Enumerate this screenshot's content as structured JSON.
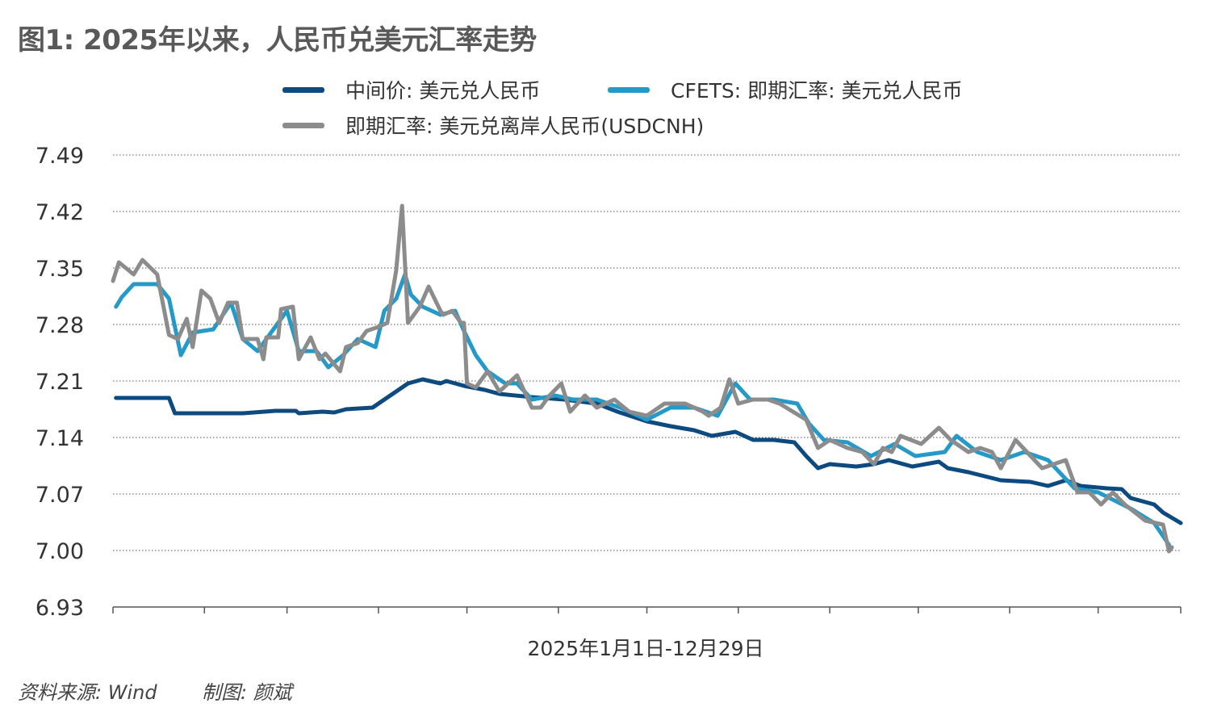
{
  "title": "图1: 2025年以来，人民币兑美元汇率走势",
  "footer": {
    "source": "资料来源: Wind",
    "author": "制图: 颜斌"
  },
  "chart_data": {
    "type": "line",
    "title": "图1: 2025年以来，人民币兑美元汇率走势",
    "xlabel": "2025年1月1日-12月29日",
    "ylabel": "",
    "x_unit": "day of year 2025 (0 = Jan 1)",
    "xlim": [
      0,
      362
    ],
    "ylim": [
      6.93,
      7.49
    ],
    "yticks": [
      "7.49",
      "7.42",
      "7.35",
      "7.28",
      "7.21",
      "7.14",
      "7.07",
      "7.00",
      "6.93"
    ],
    "ytick_values": [
      7.49,
      7.42,
      7.35,
      7.28,
      7.21,
      7.14,
      7.07,
      7.0,
      6.93
    ],
    "xticks_days": [
      0,
      31,
      59,
      90,
      120,
      151,
      181,
      212,
      243,
      273,
      304,
      334,
      362
    ],
    "grid": "horizontal dotted",
    "legend_placement": "top",
    "series": [
      {
        "name": "中间价: 美元兑人民币",
        "color": "#0d4a80",
        "points": [
          [
            1,
            7.189
          ],
          [
            19,
            7.189
          ],
          [
            21,
            7.17
          ],
          [
            44,
            7.17
          ],
          [
            55,
            7.173
          ],
          [
            62,
            7.173
          ],
          [
            63,
            7.17
          ],
          [
            71,
            7.172
          ],
          [
            75,
            7.171
          ],
          [
            79,
            7.175
          ],
          [
            88,
            7.177
          ],
          [
            92,
            7.187
          ],
          [
            96,
            7.197
          ],
          [
            100,
            7.207
          ],
          [
            105,
            7.212
          ],
          [
            111,
            7.207
          ],
          [
            113,
            7.21
          ],
          [
            119,
            7.204
          ],
          [
            126,
            7.199
          ],
          [
            131,
            7.194
          ],
          [
            142,
            7.19
          ],
          [
            153,
            7.187
          ],
          [
            164,
            7.182
          ],
          [
            171,
            7.172
          ],
          [
            181,
            7.16
          ],
          [
            189,
            7.154
          ],
          [
            197,
            7.149
          ],
          [
            203,
            7.142
          ],
          [
            211,
            7.147
          ],
          [
            217,
            7.137
          ],
          [
            224,
            7.137
          ],
          [
            231,
            7.134
          ],
          [
            235,
            7.117
          ],
          [
            239,
            7.102
          ],
          [
            243,
            7.107
          ],
          [
            252,
            7.104
          ],
          [
            258,
            7.107
          ],
          [
            263,
            7.112
          ],
          [
            271,
            7.104
          ],
          [
            280,
            7.11
          ],
          [
            283,
            7.102
          ],
          [
            290,
            7.097
          ],
          [
            301,
            7.087
          ],
          [
            311,
            7.085
          ],
          [
            317,
            7.08
          ],
          [
            323,
            7.087
          ],
          [
            328,
            7.08
          ],
          [
            337,
            7.077
          ],
          [
            342,
            7.076
          ],
          [
            345,
            7.065
          ],
          [
            353,
            7.057
          ],
          [
            356,
            7.047
          ],
          [
            362,
            7.034
          ]
        ]
      },
      {
        "name": "CFETS: 即期汇率: 美元兑人民币",
        "color": "#2599c8",
        "points": [
          [
            1,
            7.302
          ],
          [
            3,
            7.314
          ],
          [
            7,
            7.33
          ],
          [
            15,
            7.33
          ],
          [
            19,
            7.312
          ],
          [
            23,
            7.242
          ],
          [
            27,
            7.27
          ],
          [
            34,
            7.274
          ],
          [
            40,
            7.307
          ],
          [
            44,
            7.262
          ],
          [
            49,
            7.247
          ],
          [
            55,
            7.277
          ],
          [
            59,
            7.297
          ],
          [
            63,
            7.247
          ],
          [
            69,
            7.247
          ],
          [
            73,
            7.227
          ],
          [
            78,
            7.242
          ],
          [
            83,
            7.262
          ],
          [
            89,
            7.252
          ],
          [
            92,
            7.297
          ],
          [
            96,
            7.312
          ],
          [
            99,
            7.342
          ],
          [
            101,
            7.317
          ],
          [
            105,
            7.302
          ],
          [
            111,
            7.292
          ],
          [
            116,
            7.297
          ],
          [
            119,
            7.272
          ],
          [
            123,
            7.242
          ],
          [
            127,
            7.222
          ],
          [
            133,
            7.207
          ],
          [
            137,
            7.207
          ],
          [
            142,
            7.187
          ],
          [
            150,
            7.192
          ],
          [
            156,
            7.187
          ],
          [
            164,
            7.187
          ],
          [
            172,
            7.177
          ],
          [
            181,
            7.162
          ],
          [
            189,
            7.177
          ],
          [
            197,
            7.177
          ],
          [
            205,
            7.167
          ],
          [
            211,
            7.207
          ],
          [
            216,
            7.187
          ],
          [
            224,
            7.187
          ],
          [
            232,
            7.182
          ],
          [
            236,
            7.157
          ],
          [
            241,
            7.137
          ],
          [
            249,
            7.134
          ],
          [
            257,
            7.117
          ],
          [
            265,
            7.132
          ],
          [
            272,
            7.117
          ],
          [
            282,
            7.122
          ],
          [
            286,
            7.142
          ],
          [
            293,
            7.122
          ],
          [
            301,
            7.112
          ],
          [
            309,
            7.122
          ],
          [
            317,
            7.112
          ],
          [
            326,
            7.077
          ],
          [
            334,
            7.072
          ],
          [
            345,
            7.052
          ],
          [
            353,
            7.034
          ],
          [
            358,
            7.007
          ]
        ]
      },
      {
        "name": "即期汇率: 美元兑离岸人民币(USDCNH)",
        "color": "#8c8c8c",
        "points": [
          [
            0,
            7.334
          ],
          [
            2,
            7.357
          ],
          [
            7,
            7.342
          ],
          [
            10,
            7.36
          ],
          [
            15,
            7.342
          ],
          [
            19,
            7.267
          ],
          [
            22,
            7.262
          ],
          [
            25,
            7.287
          ],
          [
            27,
            7.252
          ],
          [
            30,
            7.322
          ],
          [
            33,
            7.312
          ],
          [
            36,
            7.282
          ],
          [
            39,
            7.307
          ],
          [
            42,
            7.307
          ],
          [
            44,
            7.262
          ],
          [
            49,
            7.262
          ],
          [
            51,
            7.237
          ],
          [
            52,
            7.264
          ],
          [
            56,
            7.264
          ],
          [
            57,
            7.299
          ],
          [
            61,
            7.302
          ],
          [
            63,
            7.237
          ],
          [
            67,
            7.264
          ],
          [
            70,
            7.237
          ],
          [
            72,
            7.244
          ],
          [
            77,
            7.222
          ],
          [
            79,
            7.252
          ],
          [
            83,
            7.257
          ],
          [
            86,
            7.272
          ],
          [
            90,
            7.277
          ],
          [
            93,
            7.282
          ],
          [
            96,
            7.347
          ],
          [
            98,
            7.427
          ],
          [
            100,
            7.282
          ],
          [
            104,
            7.302
          ],
          [
            107,
            7.327
          ],
          [
            111,
            7.297
          ],
          [
            112,
            7.292
          ],
          [
            115,
            7.297
          ],
          [
            118,
            7.282
          ],
          [
            119,
            7.282
          ],
          [
            120,
            7.207
          ],
          [
            123,
            7.202
          ],
          [
            127,
            7.222
          ],
          [
            131,
            7.197
          ],
          [
            137,
            7.217
          ],
          [
            142,
            7.177
          ],
          [
            145,
            7.177
          ],
          [
            148,
            7.192
          ],
          [
            152,
            7.207
          ],
          [
            155,
            7.172
          ],
          [
            160,
            7.192
          ],
          [
            164,
            7.177
          ],
          [
            170,
            7.187
          ],
          [
            175,
            7.172
          ],
          [
            181,
            7.167
          ],
          [
            187,
            7.182
          ],
          [
            194,
            7.182
          ],
          [
            200,
            7.172
          ],
          [
            202,
            7.167
          ],
          [
            206,
            7.177
          ],
          [
            209,
            7.212
          ],
          [
            212,
            7.182
          ],
          [
            217,
            7.187
          ],
          [
            222,
            7.187
          ],
          [
            226,
            7.182
          ],
          [
            235,
            7.162
          ],
          [
            239,
            7.127
          ],
          [
            243,
            7.137
          ],
          [
            249,
            7.127
          ],
          [
            254,
            7.122
          ],
          [
            258,
            7.107
          ],
          [
            261,
            7.127
          ],
          [
            264,
            7.122
          ],
          [
            267,
            7.142
          ],
          [
            274,
            7.132
          ],
          [
            280,
            7.152
          ],
          [
            284,
            7.137
          ],
          [
            290,
            7.122
          ],
          [
            294,
            7.127
          ],
          [
            298,
            7.122
          ],
          [
            301,
            7.102
          ],
          [
            306,
            7.137
          ],
          [
            315,
            7.102
          ],
          [
            323,
            7.112
          ],
          [
            327,
            7.072
          ],
          [
            331,
            7.072
          ],
          [
            335,
            7.057
          ],
          [
            339,
            7.072
          ],
          [
            343,
            7.057
          ],
          [
            350,
            7.037
          ],
          [
            356,
            7.032
          ],
          [
            358,
            6.999
          ],
          [
            359,
            7.004
          ]
        ]
      }
    ]
  }
}
